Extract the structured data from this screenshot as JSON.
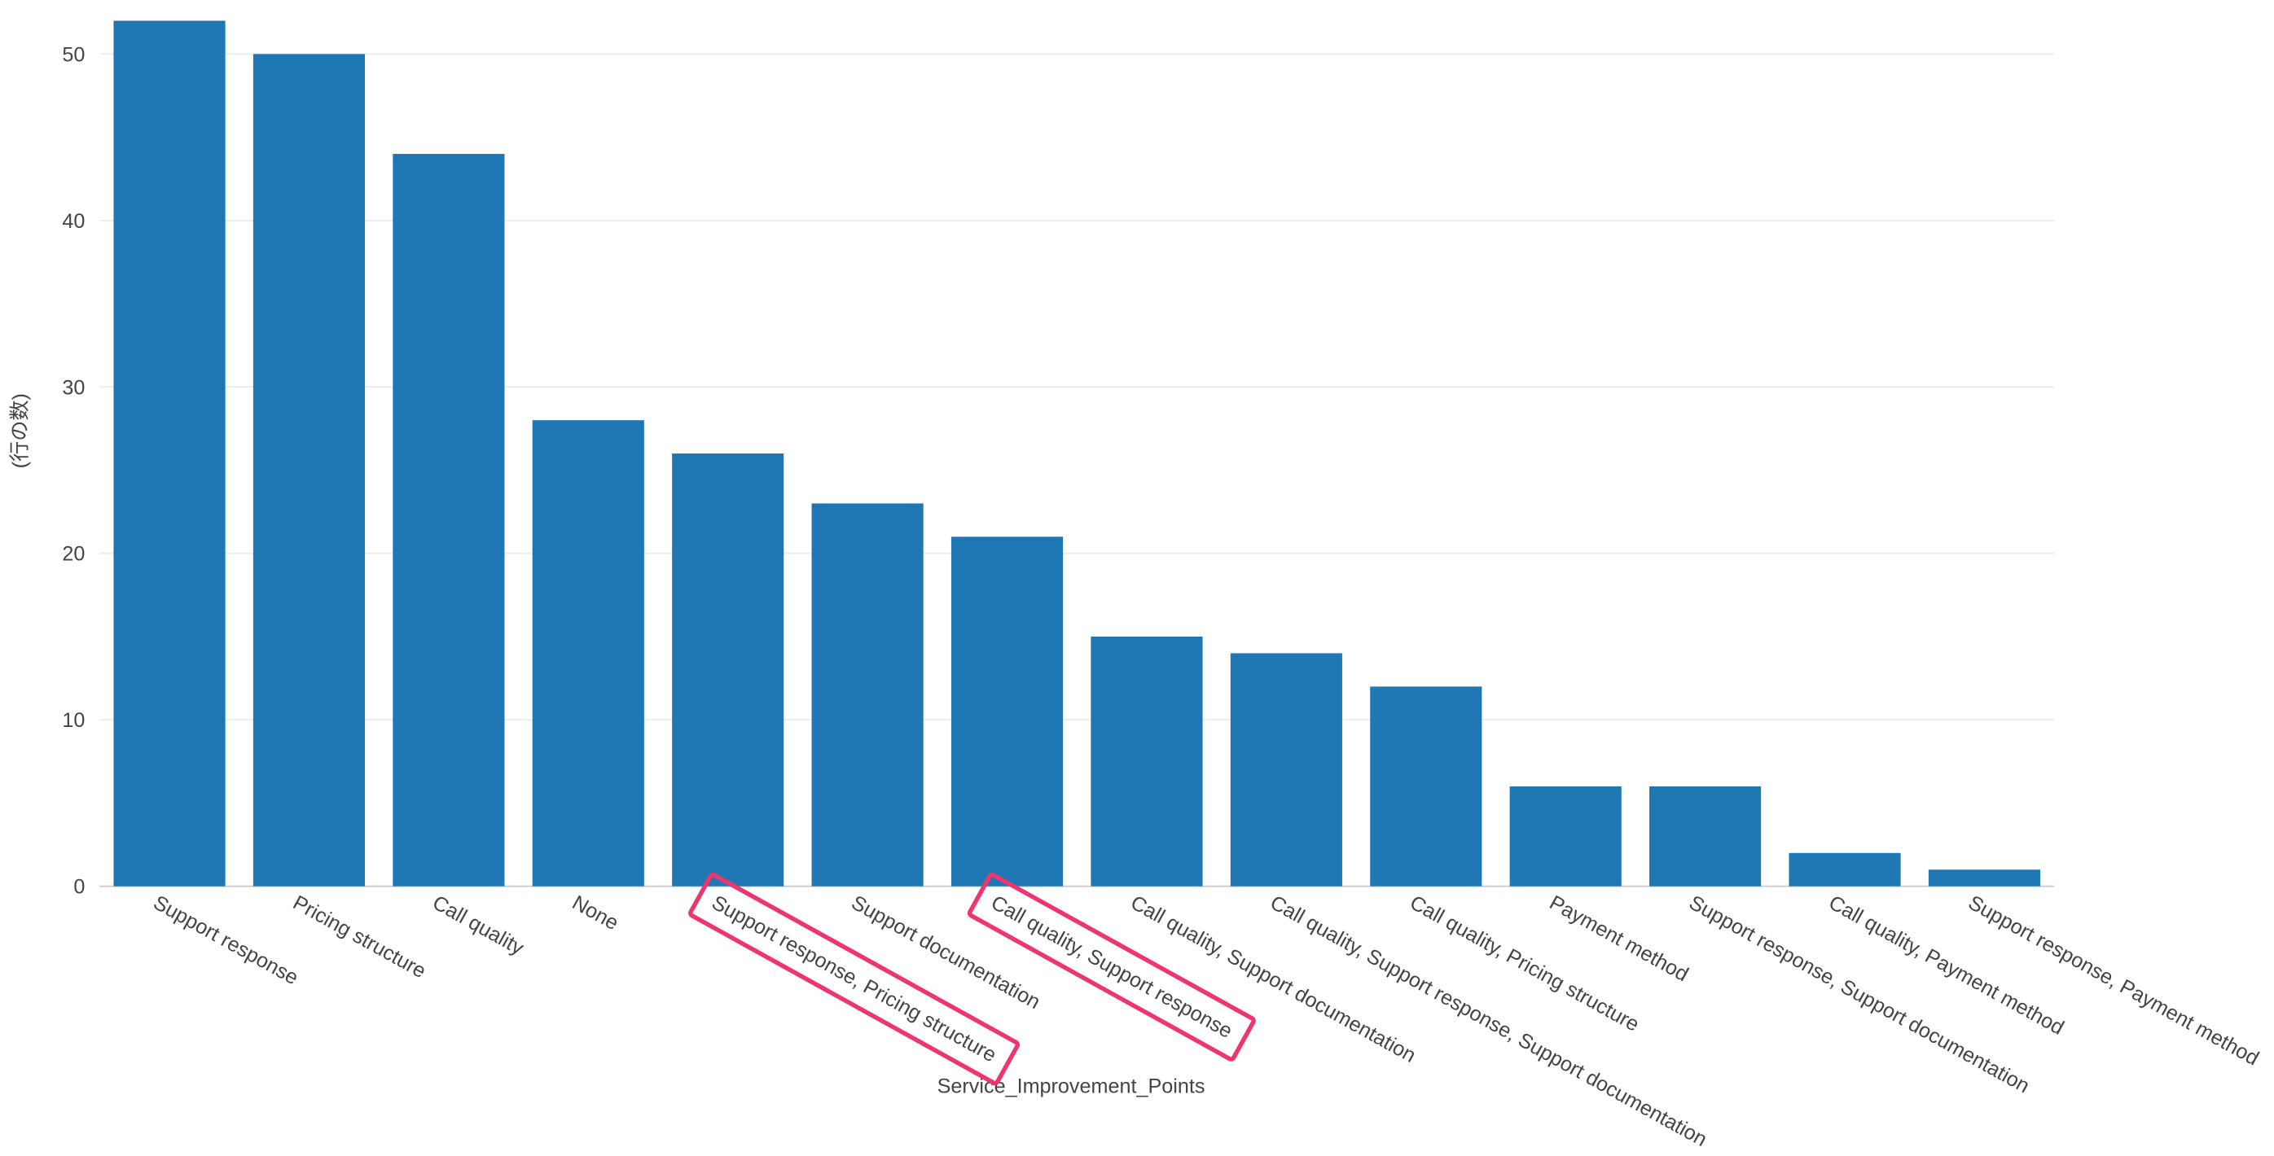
{
  "chart_data": {
    "type": "bar",
    "x_label": "Service_Improvement_Points",
    "y_label": "(行の数)",
    "categories": [
      "Support response",
      "Pricing structure",
      "Call quality",
      "None",
      "Support response, Pricing structure",
      "Support documentation",
      "Call quality, Support response",
      "Call quality, Support documentation",
      "Call quality, Support response, Support documentation",
      "Call quality, Pricing structure",
      "Payment method",
      "Support response, Support documentation",
      "Call quality, Payment method",
      "Support response, Payment method"
    ],
    "values": [
      52,
      50,
      44,
      28,
      26,
      23,
      21,
      15,
      14,
      12,
      6,
      6,
      2,
      1
    ],
    "color": "#1f77b4",
    "ylim": [
      0,
      52
    ],
    "yticks": [
      0,
      10,
      20,
      30,
      40,
      50
    ],
    "grid": true
  }
}
